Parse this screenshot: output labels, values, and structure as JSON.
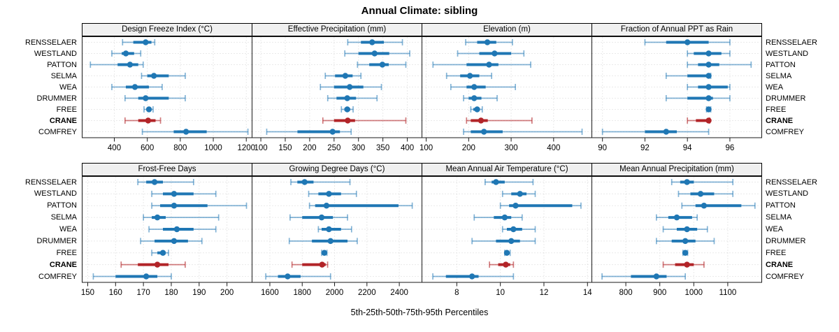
{
  "colors": {
    "series_blue": "#1F77B4",
    "series_blue_light": "rgba(31,119,180,0.55)",
    "highlight_red": "#B22428",
    "highlight_red_light": "rgba(178,36,40,0.6)",
    "grid": "#D4D4D4",
    "panel_border": "#1a1a1a",
    "panel_header_bg": "#F0F0F0"
  },
  "chart_data": {
    "type": "scatter",
    "subtype": "percentile-dotplot-lattice",
    "title": "Annual Climate: sibling",
    "caption": "5th-25th-50th-75th-95th Percentiles",
    "percentiles_shown": [
      5,
      25,
      50,
      75,
      95
    ],
    "layout": {
      "grid_rows": 2,
      "grid_cols": 4,
      "gridlines": "dotted",
      "legend": "none",
      "site_labels": "both-sides",
      "highlighted_site": "CRANE"
    },
    "sites": [
      "RENSSELAER",
      "WESTLAND",
      "PATTON",
      "SELMA",
      "WEA",
      "DRUMMER",
      "FREE",
      "CRANE",
      "COMFREY"
    ],
    "panels": [
      {
        "label": "Design Freeze Index (°C)",
        "row": 0,
        "col": 0,
        "xlim": [
          205,
          1235
        ],
        "ticks": [
          400,
          600,
          800,
          1000,
          1200
        ],
        "values": {
          "RENSSELAER": [
            450,
            515,
            590,
            625,
            645
          ],
          "WESTLAND": [
            385,
            445,
            470,
            520,
            560
          ],
          "PATTON": [
            255,
            420,
            495,
            545,
            575
          ],
          "SELMA": [
            565,
            600,
            640,
            730,
            830
          ],
          "WEA": [
            385,
            470,
            525,
            610,
            690
          ],
          "DRUMMER": [
            465,
            545,
            590,
            730,
            830
          ],
          "FREE": [
            580,
            595,
            610,
            620,
            635
          ],
          "CRANE": [
            465,
            545,
            605,
            650,
            680
          ],
          "COMFREY": [
            570,
            760,
            835,
            960,
            1210
          ]
        }
      },
      {
        "label": "Effective Precipitation (mm)",
        "row": 0,
        "col": 1,
        "xlim": [
          82,
          430
        ],
        "ticks": [
          100,
          150,
          200,
          250,
          300,
          350,
          400
        ],
        "values": {
          "RENSSELAER": [
            278,
            305,
            328,
            352,
            390
          ],
          "WESTLAND": [
            272,
            300,
            333,
            363,
            405
          ],
          "PATTON": [
            298,
            322,
            349,
            362,
            397
          ],
          "SELMA": [
            232,
            252,
            273,
            288,
            305
          ],
          "WEA": [
            222,
            250,
            282,
            310,
            347
          ],
          "DRUMMER": [
            237,
            255,
            277,
            295,
            338
          ],
          "FREE": [
            265,
            271,
            277,
            283,
            289
          ],
          "CRANE": [
            227,
            250,
            278,
            293,
            397
          ],
          "COMFREY": [
            112,
            175,
            247,
            262,
            285
          ]
        }
      },
      {
        "label": "Elevation (m)",
        "row": 0,
        "col": 2,
        "xlim": [
          90,
          490
        ],
        "ticks": [
          100,
          200,
          300,
          400
        ],
        "values": {
          "RENSSELAER": [
            193,
            220,
            244,
            265,
            303
          ],
          "WESTLAND": [
            174,
            225,
            261,
            300,
            330
          ],
          "PATTON": [
            116,
            195,
            248,
            270,
            346
          ],
          "SELMA": [
            148,
            180,
            203,
            225,
            254
          ],
          "WEA": [
            158,
            195,
            213,
            240,
            310
          ],
          "DRUMMER": [
            188,
            200,
            213,
            230,
            267
          ],
          "FREE": [
            205,
            211,
            220,
            226,
            232
          ],
          "CRANE": [
            195,
            205,
            229,
            245,
            349
          ],
          "COMFREY": [
            188,
            205,
            236,
            280,
            467
          ]
        }
      },
      {
        "label": "Fraction of Annual PPT as Rain",
        "row": 0,
        "col": 3,
        "xlim": [
          89.5,
          97.5
        ],
        "ticks": [
          90,
          92,
          94,
          96
        ],
        "values": {
          "RENSSELAER": [
            92,
            93,
            94,
            95,
            96
          ],
          "WESTLAND": [
            94,
            94.3,
            95,
            95.6,
            96
          ],
          "PATTON": [
            94,
            94.5,
            95,
            95.5,
            97
          ],
          "SELMA": [
            93,
            94,
            95,
            95,
            95.1
          ],
          "WEA": [
            94,
            94.5,
            95,
            95.9,
            96
          ],
          "DRUMMER": [
            93,
            94,
            95,
            95.2,
            96
          ],
          "FREE": [
            94.9,
            94.95,
            95,
            95.05,
            95.1
          ],
          "CRANE": [
            94,
            94.4,
            95,
            95,
            95.05
          ],
          "COMFREY": [
            90,
            92,
            93,
            93.5,
            95
          ]
        }
      },
      {
        "label": "Frost-Free Days",
        "row": 1,
        "col": 0,
        "xlim": [
          148,
          209
        ],
        "ticks": [
          150,
          160,
          170,
          180,
          190,
          200
        ],
        "values": {
          "RENSSELAER": [
            168,
            171,
            174,
            177,
            188
          ],
          "WESTLAND": [
            173,
            177,
            181,
            188,
            196
          ],
          "PATTON": [
            173,
            176,
            181,
            193,
            207
          ],
          "SELMA": [
            170,
            173,
            175,
            178,
            197
          ],
          "WEA": [
            172,
            177,
            182,
            188,
            196
          ],
          "DRUMMER": [
            169,
            174,
            181,
            186,
            191
          ],
          "FREE": [
            173,
            175,
            177,
            178,
            179
          ],
          "CRANE": [
            162,
            168,
            175,
            179,
            185
          ],
          "COMFREY": [
            152,
            160,
            171,
            175,
            180
          ]
        }
      },
      {
        "label": "Growing Degree Days (°C)",
        "row": 1,
        "col": 1,
        "xlim": [
          1490,
          2540
        ],
        "ticks": [
          1600,
          1800,
          2000,
          2200,
          2400
        ],
        "values": {
          "RENSSELAER": [
            1730,
            1770,
            1815,
            1870,
            2095
          ],
          "WESTLAND": [
            1840,
            1900,
            1965,
            2040,
            2135
          ],
          "PATTON": [
            1845,
            1880,
            1950,
            2395,
            2480
          ],
          "SELMA": [
            1725,
            1800,
            1920,
            1990,
            2080
          ],
          "WEA": [
            1900,
            1920,
            1965,
            2040,
            2105
          ],
          "DRUMMER": [
            1720,
            1860,
            1975,
            2080,
            2140
          ],
          "FREE": [
            1920,
            1930,
            1937,
            1945,
            1953
          ],
          "CRANE": [
            1737,
            1800,
            1923,
            1945,
            1957
          ],
          "COMFREY": [
            1575,
            1650,
            1710,
            1790,
            1975
          ]
        }
      },
      {
        "label": "Mean Annual Air Temperature (°C)",
        "row": 1,
        "col": 2,
        "xlim": [
          6.4,
          14.2
        ],
        "ticks": [
          8,
          10,
          12,
          14
        ],
        "values": {
          "RENSSELAER": [
            9.3,
            9.6,
            9.8,
            10.2,
            11.5
          ],
          "WESTLAND": [
            10.1,
            10.5,
            10.9,
            11.2,
            11.6
          ],
          "PATTON": [
            10.0,
            10.4,
            10.7,
            13.3,
            13.7
          ],
          "SELMA": [
            8.8,
            9.7,
            10.2,
            10.5,
            11.0
          ],
          "WEA": [
            10.1,
            10.3,
            10.6,
            11.0,
            11.6
          ],
          "DRUMMER": [
            8.7,
            9.8,
            10.5,
            10.9,
            11.6
          ],
          "FREE": [
            10.2,
            10.25,
            10.3,
            10.4,
            10.45
          ],
          "CRANE": [
            9.5,
            9.9,
            10.25,
            10.45,
            10.6
          ],
          "COMFREY": [
            6.9,
            7.5,
            8.7,
            9.0,
            10.6
          ]
        }
      },
      {
        "label": "Mean Annual Precipitation (mm)",
        "row": 1,
        "col": 3,
        "xlim": [
          700,
          1200
        ],
        "ticks": [
          800,
          900,
          1000,
          1100
        ],
        "values": {
          "RENSSELAER": [
            935,
            960,
            980,
            1000,
            1115
          ],
          "WESTLAND": [
            955,
            990,
            1020,
            1060,
            1115
          ],
          "PATTON": [
            965,
            1005,
            1030,
            1140,
            1180
          ],
          "SELMA": [
            890,
            925,
            950,
            995,
            1010
          ],
          "WEA": [
            910,
            950,
            980,
            1010,
            1040
          ],
          "DRUMMER": [
            890,
            935,
            975,
            1005,
            1060
          ],
          "FREE": [
            968,
            972,
            975,
            978,
            982
          ],
          "CRANE": [
            910,
            945,
            980,
            1000,
            1030
          ],
          "COMFREY": [
            730,
            815,
            890,
            920,
            975
          ]
        }
      }
    ]
  }
}
